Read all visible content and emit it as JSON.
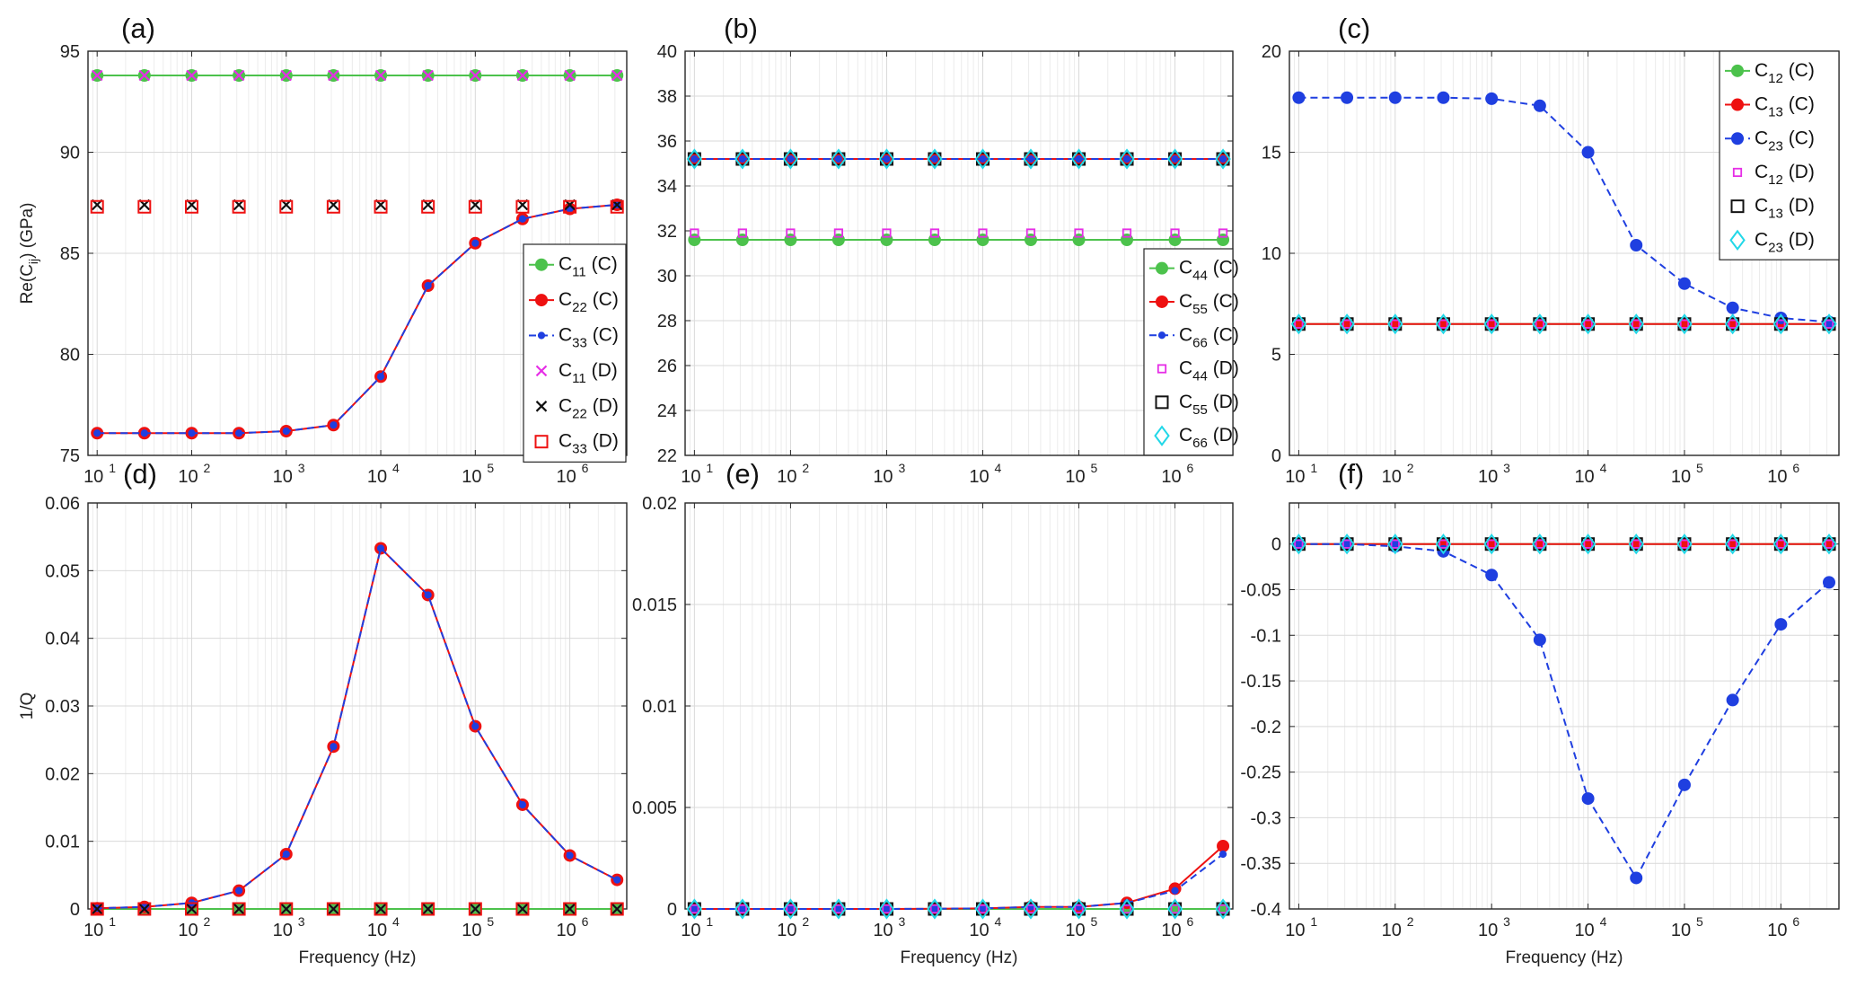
{
  "chart_data": [
    {
      "type": "line",
      "panel_label": "(a)",
      "ylabel_main": "Re(C",
      "ylabel_sub": "ij",
      "ylabel_tail": ") (GPa)",
      "xlabel": "",
      "x_scale": "log",
      "xlim": [
        8,
        4000000
      ],
      "ylim": [
        75,
        95
      ],
      "yticks": [
        75,
        80,
        85,
        90,
        95
      ],
      "x": [
        10,
        31.6,
        100,
        316,
        1000,
        3160,
        10000,
        31600,
        100000,
        316000,
        1000000,
        3160000
      ],
      "legend_position": "right",
      "series": [
        {
          "sym": "C",
          "sub": "11",
          "tag": " (C)",
          "style": "solid-circle",
          "color": "#4cc24c",
          "values": [
            93.8,
            93.8,
            93.8,
            93.8,
            93.8,
            93.8,
            93.8,
            93.8,
            93.8,
            93.8,
            93.8,
            93.8
          ]
        },
        {
          "sym": "C",
          "sub": "22",
          "tag": " (C)",
          "style": "solid-circle",
          "color": "#ee1111",
          "values": [
            76.1,
            76.1,
            76.1,
            76.1,
            76.2,
            76.5,
            78.9,
            83.4,
            85.5,
            86.7,
            87.2,
            87.4
          ]
        },
        {
          "sym": "C",
          "sub": "33",
          "tag": " (C)",
          "style": "dash-dot",
          "color": "#1f3fe0",
          "values": [
            76.1,
            76.1,
            76.1,
            76.1,
            76.2,
            76.5,
            78.9,
            83.4,
            85.5,
            86.7,
            87.2,
            87.4
          ]
        },
        {
          "sym": "C",
          "sub": "11",
          "tag": " (D)",
          "style": "x",
          "color": "#e62ee6",
          "values": [
            93.8,
            93.8,
            93.8,
            93.8,
            93.8,
            93.8,
            93.8,
            93.8,
            93.8,
            93.8,
            93.8,
            93.8
          ]
        },
        {
          "sym": "C",
          "sub": "22",
          "tag": " (D)",
          "style": "x",
          "color": "#111111",
          "values": [
            87.4,
            87.4,
            87.4,
            87.4,
            87.4,
            87.4,
            87.4,
            87.4,
            87.4,
            87.4,
            87.4,
            87.4
          ]
        },
        {
          "sym": "C",
          "sub": "33",
          "tag": " (D)",
          "style": "square",
          "color": "#ee1111",
          "values": [
            87.3,
            87.3,
            87.3,
            87.3,
            87.3,
            87.3,
            87.3,
            87.3,
            87.3,
            87.3,
            87.3,
            87.3
          ]
        }
      ]
    },
    {
      "type": "line",
      "panel_label": "(b)",
      "xlabel": "",
      "x_scale": "log",
      "xlim": [
        8,
        4000000
      ],
      "ylim": [
        22,
        40
      ],
      "yticks": [
        22,
        24,
        26,
        28,
        30,
        32,
        34,
        36,
        38,
        40
      ],
      "x": [
        10,
        31.6,
        100,
        316,
        1000,
        3160,
        10000,
        31600,
        100000,
        316000,
        1000000,
        3160000
      ],
      "legend_position": "bottom-right",
      "series": [
        {
          "sym": "C",
          "sub": "44",
          "tag": " (C)",
          "style": "solid-circle",
          "color": "#4cc24c",
          "values": [
            31.6,
            31.6,
            31.6,
            31.6,
            31.6,
            31.6,
            31.6,
            31.6,
            31.6,
            31.6,
            31.6,
            31.6
          ]
        },
        {
          "sym": "C",
          "sub": "55",
          "tag": " (C)",
          "style": "solid-circle",
          "color": "#ee1111",
          "values": [
            35.2,
            35.2,
            35.2,
            35.2,
            35.2,
            35.2,
            35.2,
            35.2,
            35.2,
            35.2,
            35.2,
            35.2
          ]
        },
        {
          "sym": "C",
          "sub": "66",
          "tag": " (C)",
          "style": "dash-dot",
          "color": "#1f3fe0",
          "values": [
            35.2,
            35.2,
            35.2,
            35.2,
            35.2,
            35.2,
            35.2,
            35.2,
            35.2,
            35.2,
            35.2,
            35.2
          ]
        },
        {
          "sym": "C",
          "sub": "44",
          "tag": " (D)",
          "style": "small-square",
          "color": "#e62ee6",
          "values": [
            31.9,
            31.9,
            31.9,
            31.9,
            31.9,
            31.9,
            31.9,
            31.9,
            31.9,
            31.9,
            31.9,
            31.9
          ]
        },
        {
          "sym": "C",
          "sub": "55",
          "tag": " (D)",
          "style": "square",
          "color": "#111111",
          "values": [
            35.2,
            35.2,
            35.2,
            35.2,
            35.2,
            35.2,
            35.2,
            35.2,
            35.2,
            35.2,
            35.2,
            35.2
          ]
        },
        {
          "sym": "C",
          "sub": "66",
          "tag": " (D)",
          "style": "diamond",
          "color": "#22d8e8",
          "values": [
            35.2,
            35.2,
            35.2,
            35.2,
            35.2,
            35.2,
            35.2,
            35.2,
            35.2,
            35.2,
            35.2,
            35.2
          ]
        }
      ]
    },
    {
      "type": "line",
      "panel_label": "(c)",
      "xlabel": "",
      "x_scale": "log",
      "xlim": [
        8,
        4000000
      ],
      "ylim": [
        0,
        20
      ],
      "yticks": [
        0,
        5,
        10,
        15,
        20
      ],
      "x": [
        10,
        31.6,
        100,
        316,
        1000,
        3160,
        10000,
        31600,
        100000,
        316000,
        1000000,
        3160000
      ],
      "legend_position": "top-right",
      "series": [
        {
          "sym": "C",
          "sub": "12",
          "tag": " (C)",
          "style": "solid-circle",
          "color": "#4cc24c",
          "values": [
            6.5,
            6.5,
            6.5,
            6.5,
            6.5,
            6.5,
            6.5,
            6.5,
            6.5,
            6.5,
            6.5,
            6.5
          ]
        },
        {
          "sym": "C",
          "sub": "13",
          "tag": " (C)",
          "style": "solid-circle",
          "color": "#ee1111",
          "values": [
            6.5,
            6.5,
            6.5,
            6.5,
            6.5,
            6.5,
            6.5,
            6.5,
            6.5,
            6.5,
            6.5,
            6.5
          ]
        },
        {
          "sym": "C",
          "sub": "23",
          "tag": " (C)",
          "style": "dash-circle",
          "color": "#1f3fe0",
          "values": [
            17.7,
            17.7,
            17.7,
            17.7,
            17.65,
            17.3,
            15.0,
            10.4,
            8.5,
            7.3,
            6.8,
            6.6
          ]
        },
        {
          "sym": "C",
          "sub": "12",
          "tag": " (D)",
          "style": "small-square",
          "color": "#e62ee6",
          "values": [
            6.5,
            6.5,
            6.5,
            6.5,
            6.5,
            6.5,
            6.5,
            6.5,
            6.5,
            6.5,
            6.5,
            6.5
          ]
        },
        {
          "sym": "C",
          "sub": "13",
          "tag": " (D)",
          "style": "square",
          "color": "#111111",
          "values": [
            6.5,
            6.5,
            6.5,
            6.5,
            6.5,
            6.5,
            6.5,
            6.5,
            6.5,
            6.5,
            6.5,
            6.5
          ]
        },
        {
          "sym": "C",
          "sub": "23",
          "tag": " (D)",
          "style": "diamond",
          "color": "#22d8e8",
          "values": [
            6.5,
            6.5,
            6.5,
            6.5,
            6.5,
            6.5,
            6.5,
            6.5,
            6.5,
            6.5,
            6.5,
            6.5
          ]
        }
      ]
    },
    {
      "type": "line",
      "panel_label": "(d)",
      "ylabel_main": "1/Q",
      "xlabel": "Frequency (Hz)",
      "x_scale": "log",
      "xlim": [
        8,
        4000000
      ],
      "ylim": [
        0,
        0.06
      ],
      "yticks": [
        0,
        0.01,
        0.02,
        0.03,
        0.04,
        0.05,
        0.06
      ],
      "ytick_labels": [
        "0",
        "0.01",
        "0.02",
        "0.03",
        "0.04",
        "0.05",
        "0.06"
      ],
      "x": [
        10,
        31.6,
        100,
        316,
        1000,
        3160,
        10000,
        31600,
        100000,
        316000,
        1000000,
        3160000
      ],
      "series": [
        {
          "style": "solid-circle",
          "color": "#4cc24c",
          "values": [
            0,
            0,
            0,
            0,
            0,
            0,
            0,
            0,
            0,
            0,
            0,
            0
          ]
        },
        {
          "style": "solid-circle",
          "color": "#ee1111",
          "values": [
            0.0001,
            0.0003,
            0.0009,
            0.0027,
            0.0081,
            0.024,
            0.0533,
            0.0464,
            0.027,
            0.0154,
            0.0079,
            0.0043
          ]
        },
        {
          "style": "dash-dot",
          "color": "#1f3fe0",
          "values": [
            0.0001,
            0.0003,
            0.0009,
            0.0027,
            0.0081,
            0.024,
            0.0533,
            0.0464,
            0.027,
            0.0154,
            0.0079,
            0.0043
          ]
        },
        {
          "style": "x",
          "color": "#e62ee6",
          "values": [
            0,
            0,
            0,
            0,
            0,
            0,
            0,
            0,
            0,
            0,
            0,
            0
          ]
        },
        {
          "style": "x",
          "color": "#111111",
          "values": [
            0,
            0,
            0,
            0,
            0,
            0,
            0,
            0,
            0,
            0,
            0,
            0
          ]
        },
        {
          "style": "square",
          "color": "#ee1111",
          "values": [
            0,
            0,
            0,
            0,
            0,
            0,
            0,
            0,
            0,
            0,
            0,
            0
          ]
        }
      ]
    },
    {
      "type": "line",
      "panel_label": "(e)",
      "xlabel": "Frequency (Hz)",
      "x_scale": "log",
      "xlim": [
        8,
        4000000
      ],
      "ylim": [
        0,
        0.02
      ],
      "yticks": [
        0,
        0.005,
        0.01,
        0.015,
        0.02
      ],
      "ytick_labels": [
        "0",
        "0.005",
        "0.01",
        "0.015",
        "0.02"
      ],
      "x": [
        10,
        31.6,
        100,
        316,
        1000,
        3160,
        10000,
        31600,
        100000,
        316000,
        1000000,
        3160000
      ],
      "series": [
        {
          "style": "solid-circle",
          "color": "#4cc24c",
          "values": [
            0,
            0,
            0,
            0,
            0,
            0,
            0,
            0,
            0,
            0,
            0,
            0
          ]
        },
        {
          "style": "solid-circle",
          "color": "#ee1111",
          "values": [
            0,
            0,
            0,
            0,
            0,
            1e-05,
            3e-05,
            0.0001,
            0.0001,
            0.0003,
            0.001,
            0.0031
          ]
        },
        {
          "style": "dash-dot",
          "color": "#1f3fe0",
          "values": [
            0,
            0,
            0,
            0,
            0,
            1e-05,
            3e-05,
            0.0001,
            0.0001,
            0.0003,
            0.0009,
            0.0027
          ]
        },
        {
          "style": "small-square",
          "color": "#e62ee6",
          "values": [
            0,
            0,
            0,
            0,
            0,
            0,
            0,
            0,
            0,
            0,
            0,
            0
          ]
        },
        {
          "style": "square",
          "color": "#111111",
          "values": [
            0,
            0,
            0,
            0,
            0,
            0,
            0,
            0,
            0,
            0,
            0,
            0
          ]
        },
        {
          "style": "diamond",
          "color": "#22d8e8",
          "values": [
            0,
            0,
            0,
            0,
            0,
            0,
            0,
            0,
            0,
            0,
            0,
            0
          ]
        }
      ]
    },
    {
      "type": "line",
      "panel_label": "(f)",
      "xlabel": "Frequency (Hz)",
      "x_scale": "log",
      "xlim": [
        8,
        4000000
      ],
      "ylim": [
        -0.4,
        0.045
      ],
      "yticks": [
        -0.4,
        -0.35,
        -0.3,
        -0.25,
        -0.2,
        -0.15,
        -0.1,
        -0.05,
        0
      ],
      "ytick_labels": [
        "-0.4",
        "-0.35",
        "-0.3",
        "-0.25",
        "-0.2",
        "-0.15",
        "-0.1",
        "-0.05",
        "0"
      ],
      "x": [
        10,
        31.6,
        100,
        316,
        1000,
        3160,
        10000,
        31600,
        100000,
        316000,
        1000000,
        3160000
      ],
      "series": [
        {
          "style": "solid-circle",
          "color": "#4cc24c",
          "values": [
            0,
            0,
            0,
            0,
            0,
            0,
            0,
            0,
            0,
            0,
            0,
            0
          ]
        },
        {
          "style": "solid-circle",
          "color": "#ee1111",
          "values": [
            0,
            0,
            0,
            0,
            0,
            0,
            0,
            0,
            0,
            0,
            0,
            0
          ]
        },
        {
          "style": "dash-circle",
          "color": "#1f3fe0",
          "values": [
            0,
            0,
            -0.0025,
            -0.008,
            -0.034,
            -0.105,
            -0.279,
            -0.366,
            -0.264,
            -0.171,
            -0.088,
            -0.042
          ]
        },
        {
          "style": "small-square",
          "color": "#e62ee6",
          "values": [
            0,
            0,
            0,
            0,
            0,
            0,
            0,
            0,
            0,
            0,
            0,
            0
          ]
        },
        {
          "style": "square",
          "color": "#111111",
          "values": [
            0,
            0,
            0,
            0,
            0,
            0,
            0,
            0,
            0,
            0,
            0,
            0
          ]
        },
        {
          "style": "diamond",
          "color": "#22d8e8",
          "values": [
            0,
            0,
            0,
            0,
            0,
            0,
            0,
            0,
            0,
            0,
            0,
            0
          ]
        }
      ]
    }
  ],
  "x_tick_base": "10",
  "x_tick_exponents": [
    "1",
    "2",
    "3",
    "4",
    "5",
    "6"
  ]
}
